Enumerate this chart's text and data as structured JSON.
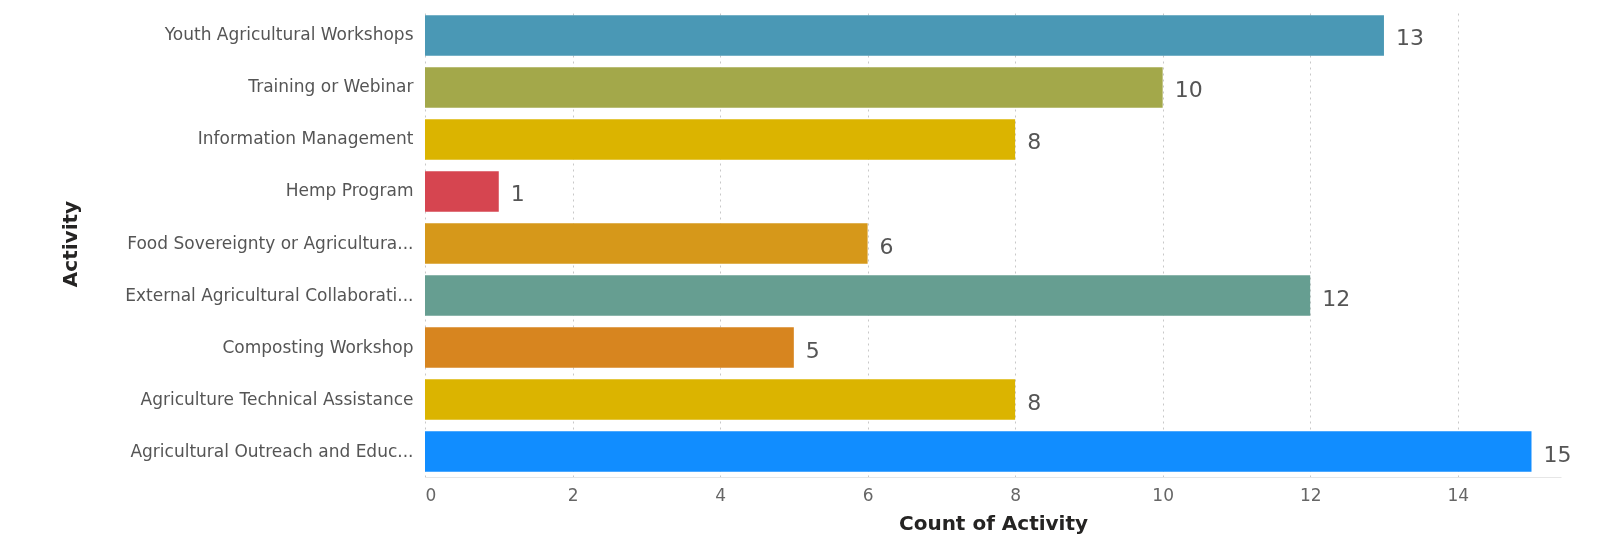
{
  "chart_data": {
    "type": "bar",
    "orientation": "horizontal",
    "xlabel": "Count of Activity",
    "ylabel": "Activity",
    "categories": [
      "Youth Agricultural Workshops",
      "Training or Webinar",
      "Information Management",
      "Hemp Program",
      "Food Sovereignty or Agricultura...",
      "External Agricultural Collaborati...",
      "Composting Workshop",
      "Agriculture Technical Assistance",
      "Agricultural Outreach and Educ..."
    ],
    "values": [
      13,
      10,
      8,
      1,
      6,
      12,
      5,
      8,
      15
    ],
    "colors": [
      "#4a98b5",
      "#a3a84a",
      "#dbb400",
      "#d64550",
      "#d6981a",
      "#669e91",
      "#d7851f",
      "#dbb400",
      "#118dff"
    ],
    "xlim": [
      0,
      15.4
    ],
    "xticks": [
      0,
      2,
      4,
      6,
      8,
      10,
      12,
      14
    ],
    "grid": "x",
    "data_labels": true
  }
}
